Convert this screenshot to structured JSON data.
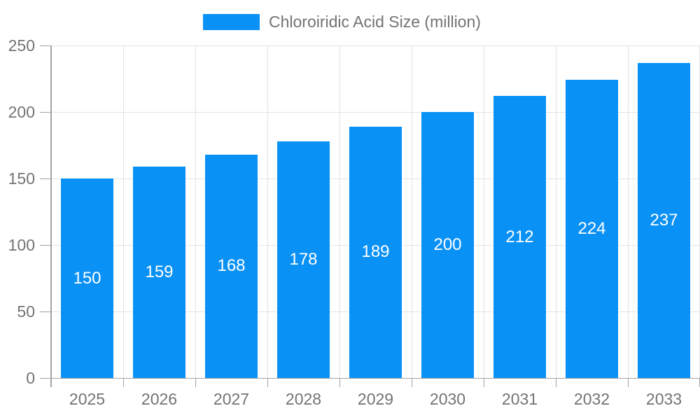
{
  "chart_data": {
    "type": "bar",
    "title": "Chloroiridic Acid Size (million)",
    "legend": {
      "label": "Chloroiridic Acid Size (million)",
      "position": "top"
    },
    "categories": [
      "2025",
      "2026",
      "2027",
      "2028",
      "2029",
      "2030",
      "2031",
      "2032",
      "2033"
    ],
    "series": [
      {
        "name": "Chloroiridic Acid Size (million)",
        "values": [
          150,
          159,
          168,
          178,
          189,
          200,
          212,
          224,
          237
        ]
      }
    ],
    "xlabel": "",
    "ylabel": "",
    "ylim": [
      0,
      250
    ],
    "yticks": [
      0,
      50,
      100,
      150,
      200,
      250
    ],
    "grid": true,
    "value_labels_position": "inside-center",
    "colors": {
      "bar": "#0a91f5",
      "grid": "#e3e3e3",
      "axis": "#a3a3a3",
      "tick_text": "#737373",
      "value_text": "#ffffff",
      "background": "#ffffff"
    }
  }
}
